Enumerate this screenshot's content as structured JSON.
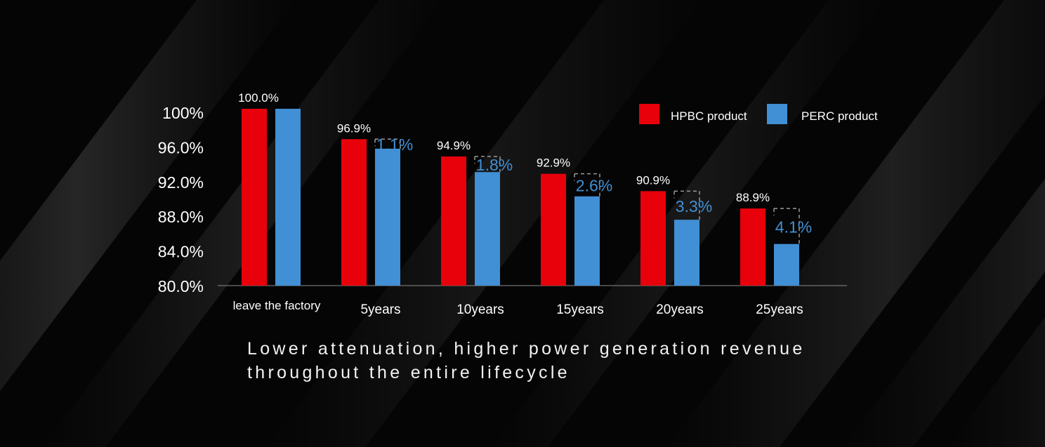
{
  "chart_data": {
    "type": "bar",
    "categories": [
      "leave the factory",
      "5years",
      "10years",
      "15years",
      "20years",
      "25years"
    ],
    "series": [
      {
        "name": "HPBC product",
        "color": "#e8000b",
        "values": [
          100.0,
          96.9,
          94.9,
          92.9,
          90.9,
          88.9
        ],
        "labels": [
          "100.0%",
          "96.9%",
          "94.9%",
          "92.9%",
          "90.9%",
          "88.9%"
        ]
      },
      {
        "name": "PERC product",
        "color": "#418fd4",
        "values": [
          100.0,
          95.8,
          93.1,
          90.3,
          87.6,
          84.8
        ]
      }
    ],
    "gap_labels": [
      "",
      "1.1%",
      "1.8%",
      "2.6%",
      "3.3%",
      "4.1%"
    ],
    "yticks": [
      100,
      96,
      92,
      88,
      84,
      80
    ],
    "ytick_labels": [
      "100%",
      "96.0%",
      "92.0%",
      "88.0%",
      "84.0%",
      "80.0%"
    ],
    "ylim": [
      80,
      100
    ],
    "legend_position": "top-right",
    "grid": false
  },
  "caption": {
    "line1": "Lower attenuation, higher power generation revenue",
    "line2": "throughout the entire lifecycle"
  }
}
